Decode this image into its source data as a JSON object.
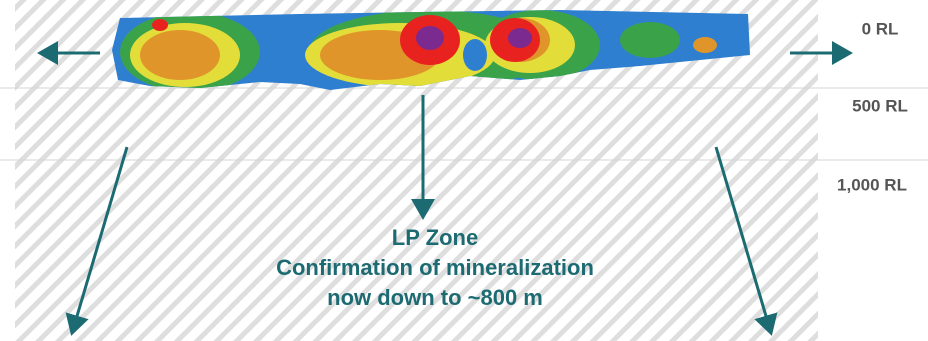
{
  "levels": [
    "0 RL",
    "500 RL",
    "1,000 RL"
  ],
  "annotation": {
    "lines": [
      "LP Zone",
      "Confirmation of mineralization",
      "now down to ~800 m"
    ]
  }
}
